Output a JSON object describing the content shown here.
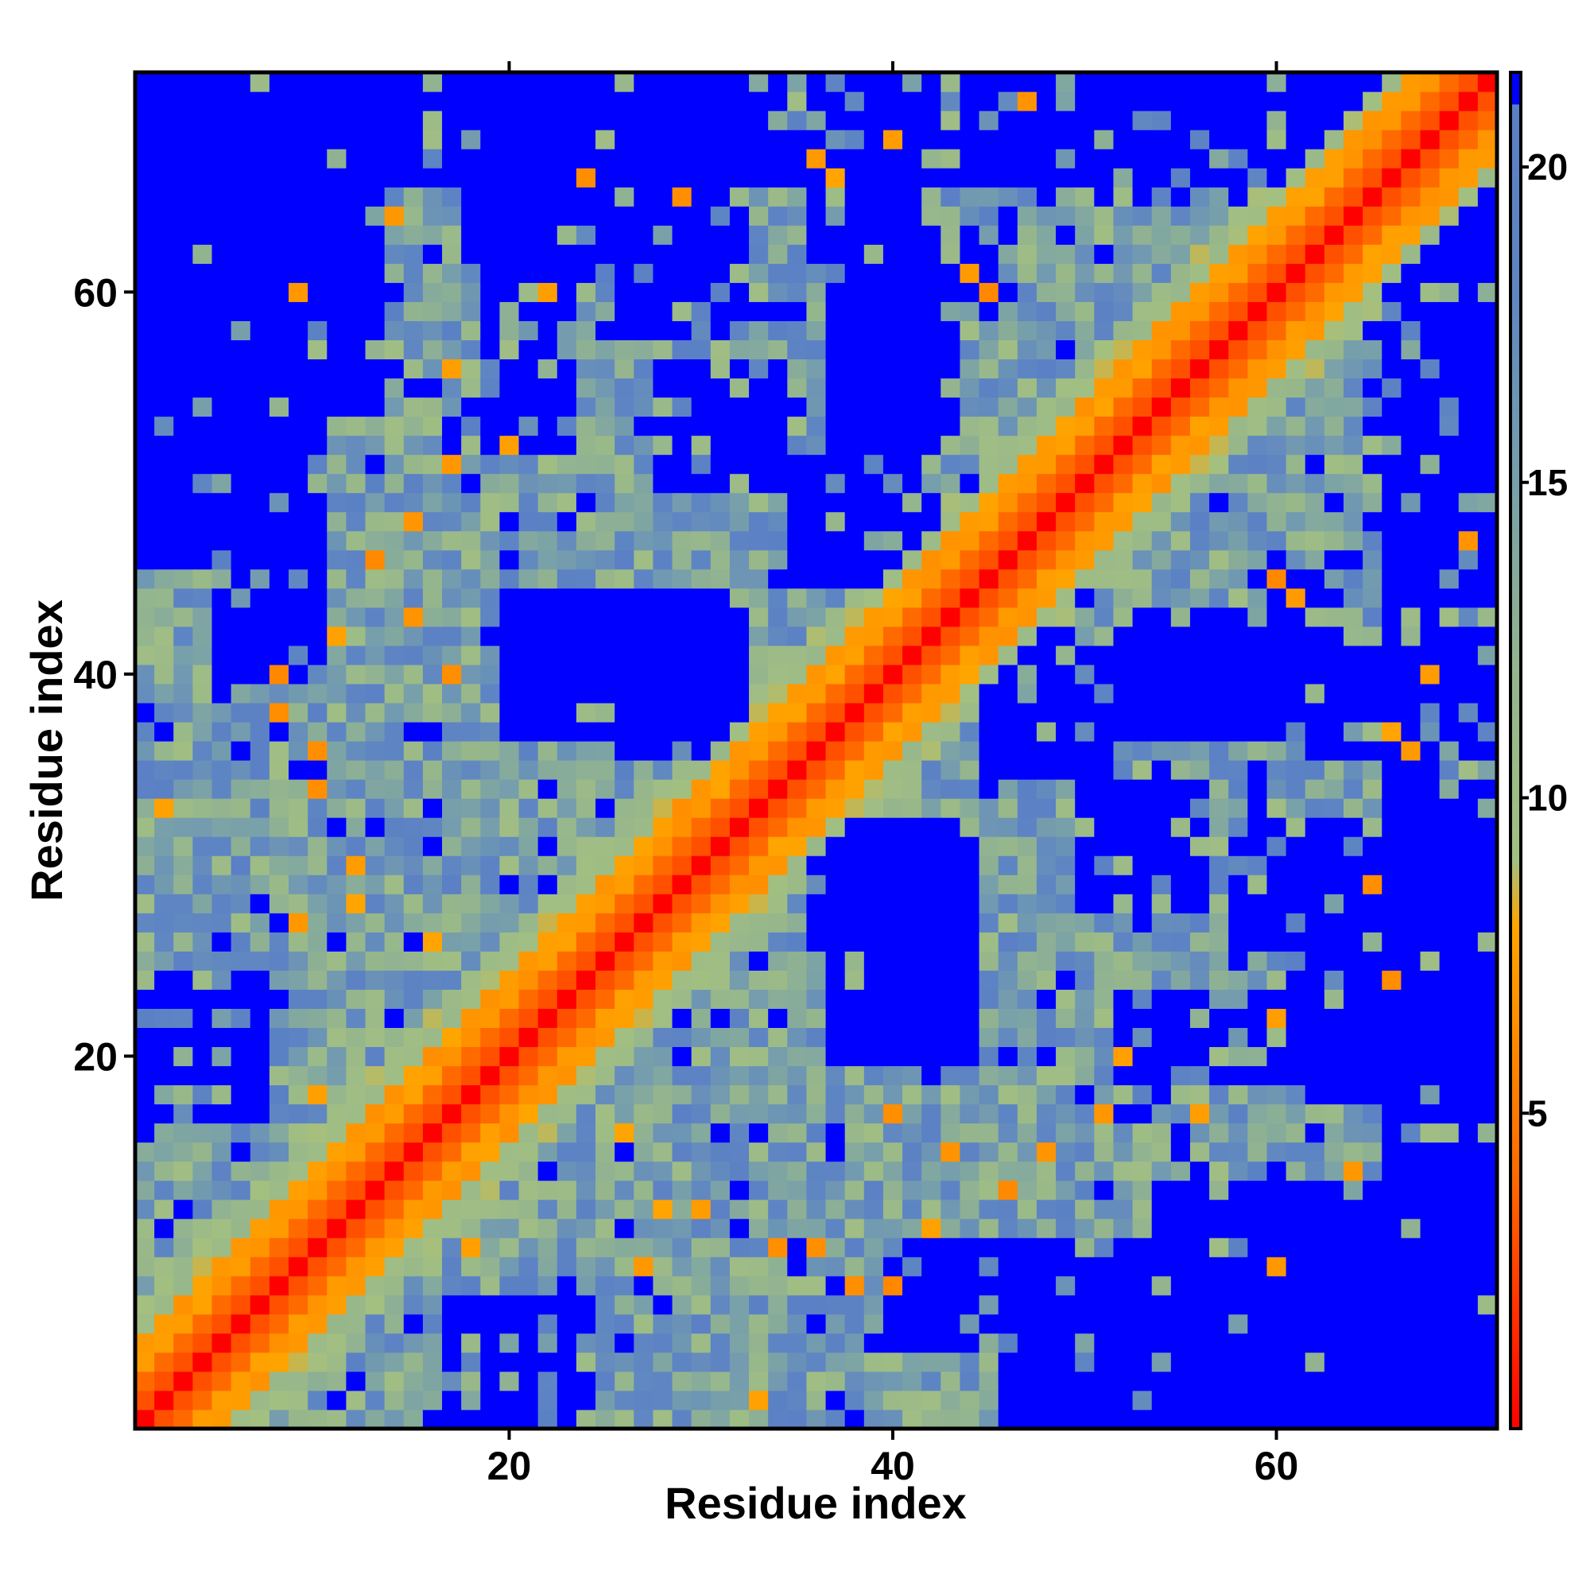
{
  "chart_data": {
    "type": "heatmap",
    "title": "",
    "xlabel": "Residue index",
    "ylabel": "Residue index",
    "n_residues": 71,
    "xlim": [
      0.5,
      71.5
    ],
    "ylim": [
      0.5,
      71.5
    ],
    "x_ticks": [
      20,
      40,
      60
    ],
    "y_ticks": [
      20,
      40,
      60
    ],
    "colorbar": {
      "range": [
        0,
        21.5
      ],
      "ticks": [
        5,
        10,
        15,
        20
      ],
      "stops": [
        {
          "value": 0,
          "color": "#ff0000"
        },
        {
          "value": 4,
          "color": "#ff6a00"
        },
        {
          "value": 8,
          "color": "#ffa500"
        },
        {
          "value": 9,
          "color": "#a3c081"
        },
        {
          "value": 12,
          "color": "#94b58e"
        },
        {
          "value": 15,
          "color": "#78a0aa"
        },
        {
          "value": 18,
          "color": "#5f86c2"
        },
        {
          "value": 21,
          "color": "#5a7fc6"
        },
        {
          "value": 21.01,
          "color": "#0000ff"
        },
        {
          "value": 21.5,
          "color": "#0000ff"
        }
      ]
    },
    "matrix_description": "Symmetric residue-residue distance map (Å); diagonal = 0. Values near the diagonal are small (red/orange), |i-j|<=2 red, |i-j|=3-4 orange; distant pairs mostly 10-20 (green/steel-blue) with saturated blue blocks (>20) concentrated in the top-left/bottom-right corners and mid-range regions.",
    "blue_blocks": [
      [
        1,
        10,
        46,
        71
      ],
      [
        5,
        10,
        40,
        71
      ],
      [
        11,
        13,
        54,
        71
      ],
      [
        19,
        26,
        63,
        71
      ],
      [
        26,
        32,
        58,
        71
      ],
      [
        28,
        32,
        38,
        44
      ],
      [
        20,
        25,
        39,
        43
      ],
      [
        26,
        30,
        36,
        42
      ],
      [
        37,
        42,
        52,
        61
      ],
      [
        35,
        42,
        45,
        51
      ],
      [
        41,
        45,
        59,
        63
      ],
      [
        44,
        49,
        45,
        51
      ],
      [
        36,
        41,
        62,
        67
      ],
      [
        37,
        44,
        20,
        31
      ],
      [
        38,
        44,
        21,
        25
      ],
      [
        50,
        56,
        28,
        34
      ],
      [
        53,
        60,
        38,
        43
      ],
      [
        52,
        66,
        19,
        23
      ],
      [
        51,
        58,
        1,
        8
      ],
      [
        58,
        71,
        1,
        12
      ],
      [
        62,
        71,
        18,
        31
      ],
      [
        66,
        71,
        1,
        71
      ],
      [
        46,
        71,
        1,
        3
      ],
      [
        17,
        24,
        1,
        7
      ]
    ],
    "orange_spots": [
      [
        22,
        60
      ],
      [
        17,
        56
      ],
      [
        13,
        46
      ],
      [
        11,
        42
      ],
      [
        8,
        40
      ],
      [
        10,
        18
      ],
      [
        12,
        30
      ],
      [
        16,
        26
      ],
      [
        28,
        12
      ],
      [
        33,
        2
      ],
      [
        36,
        10
      ],
      [
        38,
        8
      ],
      [
        45,
        60
      ],
      [
        40,
        68
      ],
      [
        47,
        70
      ],
      [
        60,
        9
      ],
      [
        64,
        14
      ],
      [
        66,
        24
      ],
      [
        51,
        17
      ],
      [
        48,
        15
      ],
      [
        43,
        15
      ],
      [
        29,
        65
      ],
      [
        27,
        9
      ],
      [
        34,
        10
      ],
      [
        17,
        40
      ],
      [
        37,
        66
      ],
      [
        15,
        43
      ],
      [
        20,
        52
      ],
      [
        61,
        44
      ],
      [
        67,
        36
      ]
    ]
  }
}
